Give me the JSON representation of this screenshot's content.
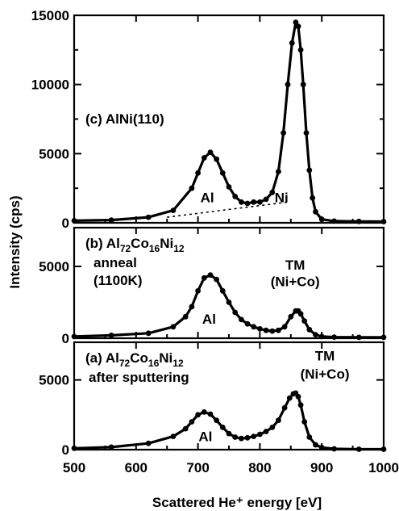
{
  "chart_data": {
    "type": "line",
    "xlabel": "Scattered He⁺ energy  [eV]",
    "ylabel": "Intensity (cps)",
    "xlim": [
      500,
      1000
    ],
    "x_ticks": [
      "500",
      "600",
      "700",
      "800",
      "900",
      "1000"
    ],
    "panels": [
      {
        "id": "c",
        "label_prefix": "(c) AlNi(110)",
        "ylim": [
          0,
          15000
        ],
        "y_ticks": [
          "0",
          "5000",
          "10000",
          "15000"
        ],
        "annotations": [
          "Al",
          "Ni"
        ],
        "series": [
          {
            "x": [
              500,
              560,
              620,
              660,
              690,
              700,
              710,
              720,
              730,
              740,
              750,
              760,
              770,
              780,
              790,
              800,
              810,
              820,
              830,
              838,
              845,
              852,
              858,
              862,
              866,
              870,
              875,
              880,
              885,
              890,
              900,
              920,
              960,
              1000
            ],
            "values": [
              150,
              200,
              400,
              900,
              2500,
              3600,
              4700,
              5100,
              4600,
              3600,
              2600,
              1900,
              1500,
              1400,
              1500,
              1500,
              1700,
              2200,
              3700,
              6500,
              10000,
              13000,
              14500,
              14200,
              12500,
              10000,
              6500,
              3800,
              1800,
              800,
              250,
              120,
              100,
              90
            ]
          }
        ],
        "baseline": {
          "x": [
            650,
            845
          ],
          "values": [
            400,
            1500
          ]
        }
      },
      {
        "id": "b",
        "label_prefix": "(b) Al",
        "subscripts": [
          "72",
          "16",
          "12"
        ],
        "label_parts": [
          "Co",
          "Ni"
        ],
        "extra_lines": [
          "anneal",
          "(1100K)"
        ],
        "ylim": [
          0,
          7700
        ],
        "y_ticks": [
          "0",
          "5000"
        ],
        "annotations": [
          "Al",
          "TM",
          "(Ni+Co)"
        ],
        "series": [
          {
            "x": [
              500,
              560,
              620,
              660,
              680,
              690,
              700,
              710,
              720,
              730,
              740,
              750,
              760,
              770,
              780,
              790,
              800,
              810,
              820,
              830,
              840,
              850,
              858,
              862,
              866,
              872,
              880,
              890,
              900,
              920,
              960,
              1000
            ],
            "values": [
              120,
              200,
              350,
              800,
              1500,
              2200,
              3300,
              4200,
              4400,
              4100,
              3300,
              2500,
              1800,
              1300,
              1000,
              800,
              650,
              550,
              500,
              550,
              800,
              1500,
              1900,
              1900,
              1700,
              1200,
              600,
              250,
              120,
              80,
              60,
              60
            ]
          }
        ]
      },
      {
        "id": "a",
        "label_prefix": "(a) Al",
        "subscripts": [
          "72",
          "16",
          "12"
        ],
        "label_parts": [
          "Co",
          "Ni"
        ],
        "extra_lines": [
          "after sputtering"
        ],
        "ylim": [
          0,
          7700
        ],
        "y_ticks": [
          "0",
          "5000"
        ],
        "annotations": [
          "Al",
          "TM",
          "(Ni+Co)"
        ],
        "series": [
          {
            "x": [
              500,
              560,
              620,
              660,
              680,
              690,
              700,
              710,
              720,
              730,
              740,
              750,
              760,
              770,
              780,
              790,
              800,
              810,
              820,
              830,
              840,
              848,
              854,
              858,
              862,
              866,
              872,
              880,
              890,
              900,
              920,
              960,
              1000
            ],
            "values": [
              100,
              180,
              450,
              950,
              1500,
              2000,
              2500,
              2700,
              2550,
              2100,
              1600,
              1150,
              900,
              800,
              850,
              950,
              1100,
              1300,
              1600,
              2100,
              3000,
              3700,
              4000,
              4050,
              3800,
              3200,
              2000,
              900,
              350,
              150,
              60,
              30,
              30
            ]
          }
        ]
      }
    ]
  }
}
